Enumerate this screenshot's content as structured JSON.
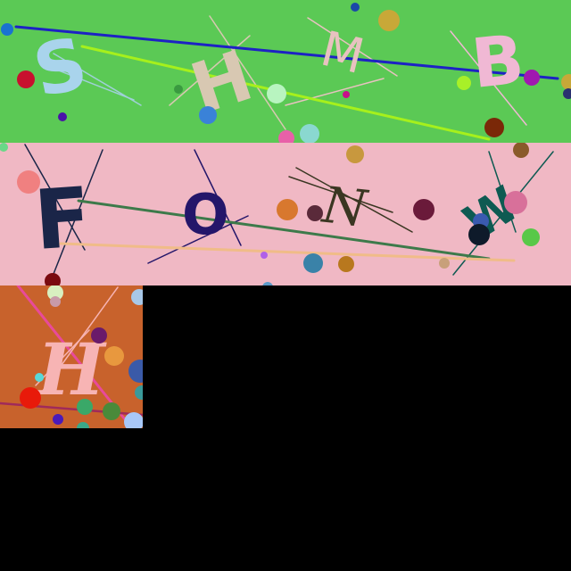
{
  "captcha_tiles": [
    {
      "background": "#5bc955",
      "characters": [
        {
          "text": "S",
          "color": "#a9d4ec"
        },
        {
          "text": "H",
          "color": "#d8c8b2"
        },
        {
          "text": "M",
          "color": "#e8c2c0"
        },
        {
          "text": "B",
          "color": "#f0b8d4"
        }
      ]
    },
    {
      "background": "#f0b8c4",
      "characters": [
        {
          "text": "F",
          "color": "#1a2548"
        },
        {
          "text": "O",
          "color": "#24166a"
        },
        {
          "text": "N",
          "color": "#3a3622"
        },
        {
          "text": "W",
          "color": "#0e5a52"
        }
      ]
    },
    {
      "background": "#c8622c",
      "characters": [
        {
          "text": "H",
          "color": "#f7b4b4"
        }
      ]
    }
  ],
  "empty_area_color": "#000000"
}
